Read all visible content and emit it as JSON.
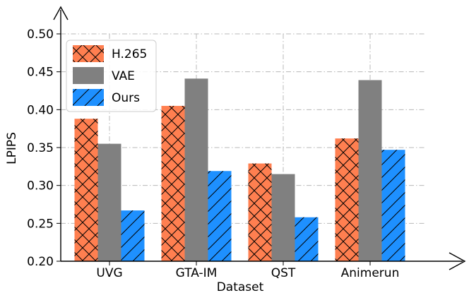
{
  "chart_data": {
    "type": "bar",
    "title": "",
    "xlabel": "Dataset",
    "ylabel": "LPIPS",
    "categories": [
      "UVG",
      "GTA-IM",
      "QST",
      "Animerun"
    ],
    "ylim": [
      0.2,
      0.5
    ],
    "yticks": [
      "0.20",
      "0.25",
      "0.30",
      "0.35",
      "0.40",
      "0.45",
      "0.50"
    ],
    "grid": true,
    "legend_position": "top-left",
    "series": [
      {
        "name": "H.265",
        "values": [
          0.388,
          0.405,
          0.329,
          0.362
        ],
        "color": "#ff7f50",
        "hatch": "cross"
      },
      {
        "name": "VAE",
        "values": [
          0.355,
          0.441,
          0.315,
          0.439
        ],
        "color": "#808080",
        "hatch": "none"
      },
      {
        "name": "Ours",
        "values": [
          0.267,
          0.319,
          0.258,
          0.347
        ],
        "color": "#1e90ff",
        "hatch": "diagonal"
      }
    ]
  }
}
